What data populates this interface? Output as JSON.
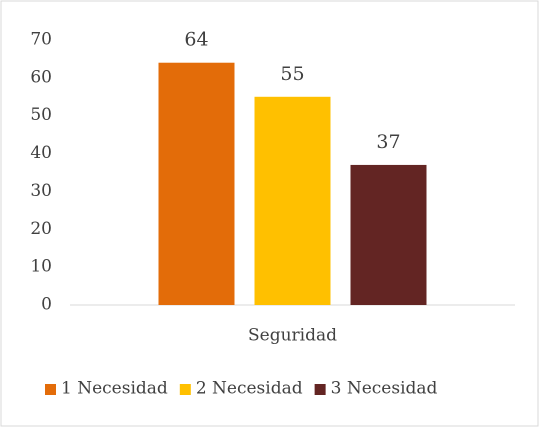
{
  "chart_data": {
    "type": "bar",
    "categories": [
      "Seguridad"
    ],
    "series": [
      {
        "name": "1 Necesidad",
        "color": "#e36c09",
        "values": [
          64
        ]
      },
      {
        "name": "2 Necesidad",
        "color": "#ffc000",
        "values": [
          55
        ]
      },
      {
        "name": "3 Necesidad",
        "color": "#632523",
        "values": [
          37
        ]
      }
    ],
    "ylim": [
      0,
      70
    ],
    "yticks": [
      0,
      10,
      20,
      30,
      40,
      50,
      60,
      70
    ],
    "grid": false,
    "legend": "bottom"
  }
}
